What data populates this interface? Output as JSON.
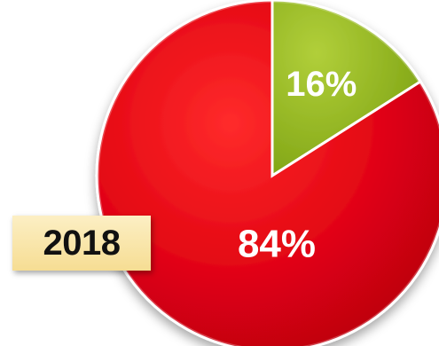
{
  "chart_data": {
    "type": "pie",
    "categories": [
      "",
      ""
    ],
    "values": [
      16,
      84
    ],
    "labels": [
      "16%",
      "84%"
    ],
    "colors": [
      "#8fb21d",
      "#e0001a"
    ],
    "year_label": "2018",
    "title": "",
    "legend": "none"
  }
}
